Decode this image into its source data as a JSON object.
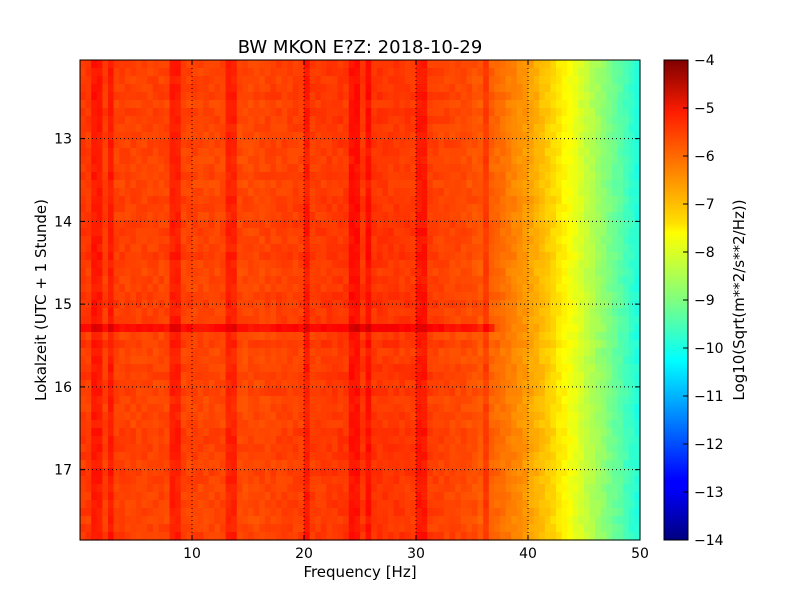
{
  "chart_data": {
    "type": "heatmap",
    "title": "BW MKON E?Z: 2018-10-29",
    "xlabel": "Frequency [Hz]",
    "ylabel": "Lokalzeit (UTC + 1 Stunde)",
    "xlim": [
      0,
      50
    ],
    "ylim": [
      12.05,
      17.85
    ],
    "x_ticks": [
      10,
      20,
      30,
      40,
      50
    ],
    "y_ticks": [
      13,
      14,
      15,
      16,
      17
    ],
    "y_inverted": true,
    "grid": true,
    "colorbar": {
      "label": "Log10(Sqrt(m**2/s**2/Hz))",
      "range": [
        -14,
        -4
      ],
      "ticks": [
        -4,
        -5,
        -6,
        -7,
        -8,
        -9,
        -10,
        -11,
        -12,
        -13,
        -14
      ],
      "colormap": "jet"
    },
    "spectrum_profile": {
      "frequency_hz": [
        0,
        5,
        10,
        15,
        20,
        25,
        30,
        35,
        37.5,
        40,
        42,
        44,
        46,
        48,
        50
      ],
      "log_psd": [
        -5.8,
        -5.9,
        -5.9,
        -5.95,
        -5.85,
        -5.75,
        -5.8,
        -6.0,
        -6.3,
        -6.8,
        -7.3,
        -7.9,
        -8.6,
        -9.3,
        -10.0
      ]
    },
    "vertical_stripes_hz": [
      1.5,
      2.8,
      8.6,
      13.5,
      20.3,
      24.5,
      25.8,
      30.5,
      36.2
    ],
    "horizontal_event_time": 15.28
  }
}
